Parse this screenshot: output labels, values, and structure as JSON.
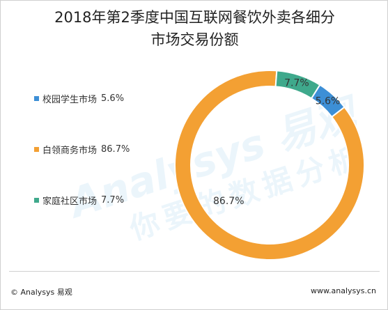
{
  "chart_data": {
    "type": "pie",
    "title_line1": "2018年第2季度中国互联网餐饮外卖各细分",
    "title_line2": "市场交易份额",
    "slices": [
      {
        "name": "校园学生市场",
        "value": 5.6,
        "label": "5.6%",
        "color": "#3d8fd6"
      },
      {
        "name": "白领商务市场",
        "value": 86.7,
        "label": "86.7%",
        "color": "#f3a033"
      },
      {
        "name": "家庭社区市场",
        "value": 7.7,
        "label": "7.7%",
        "color": "#3fa98c"
      }
    ],
    "legend_placement": "left"
  },
  "watermark": {
    "brand": "Analysys 易观",
    "slogan": "你要的数据分析"
  },
  "footer": {
    "left": "© Analysys 易观",
    "right": "www.analysys.cn"
  }
}
